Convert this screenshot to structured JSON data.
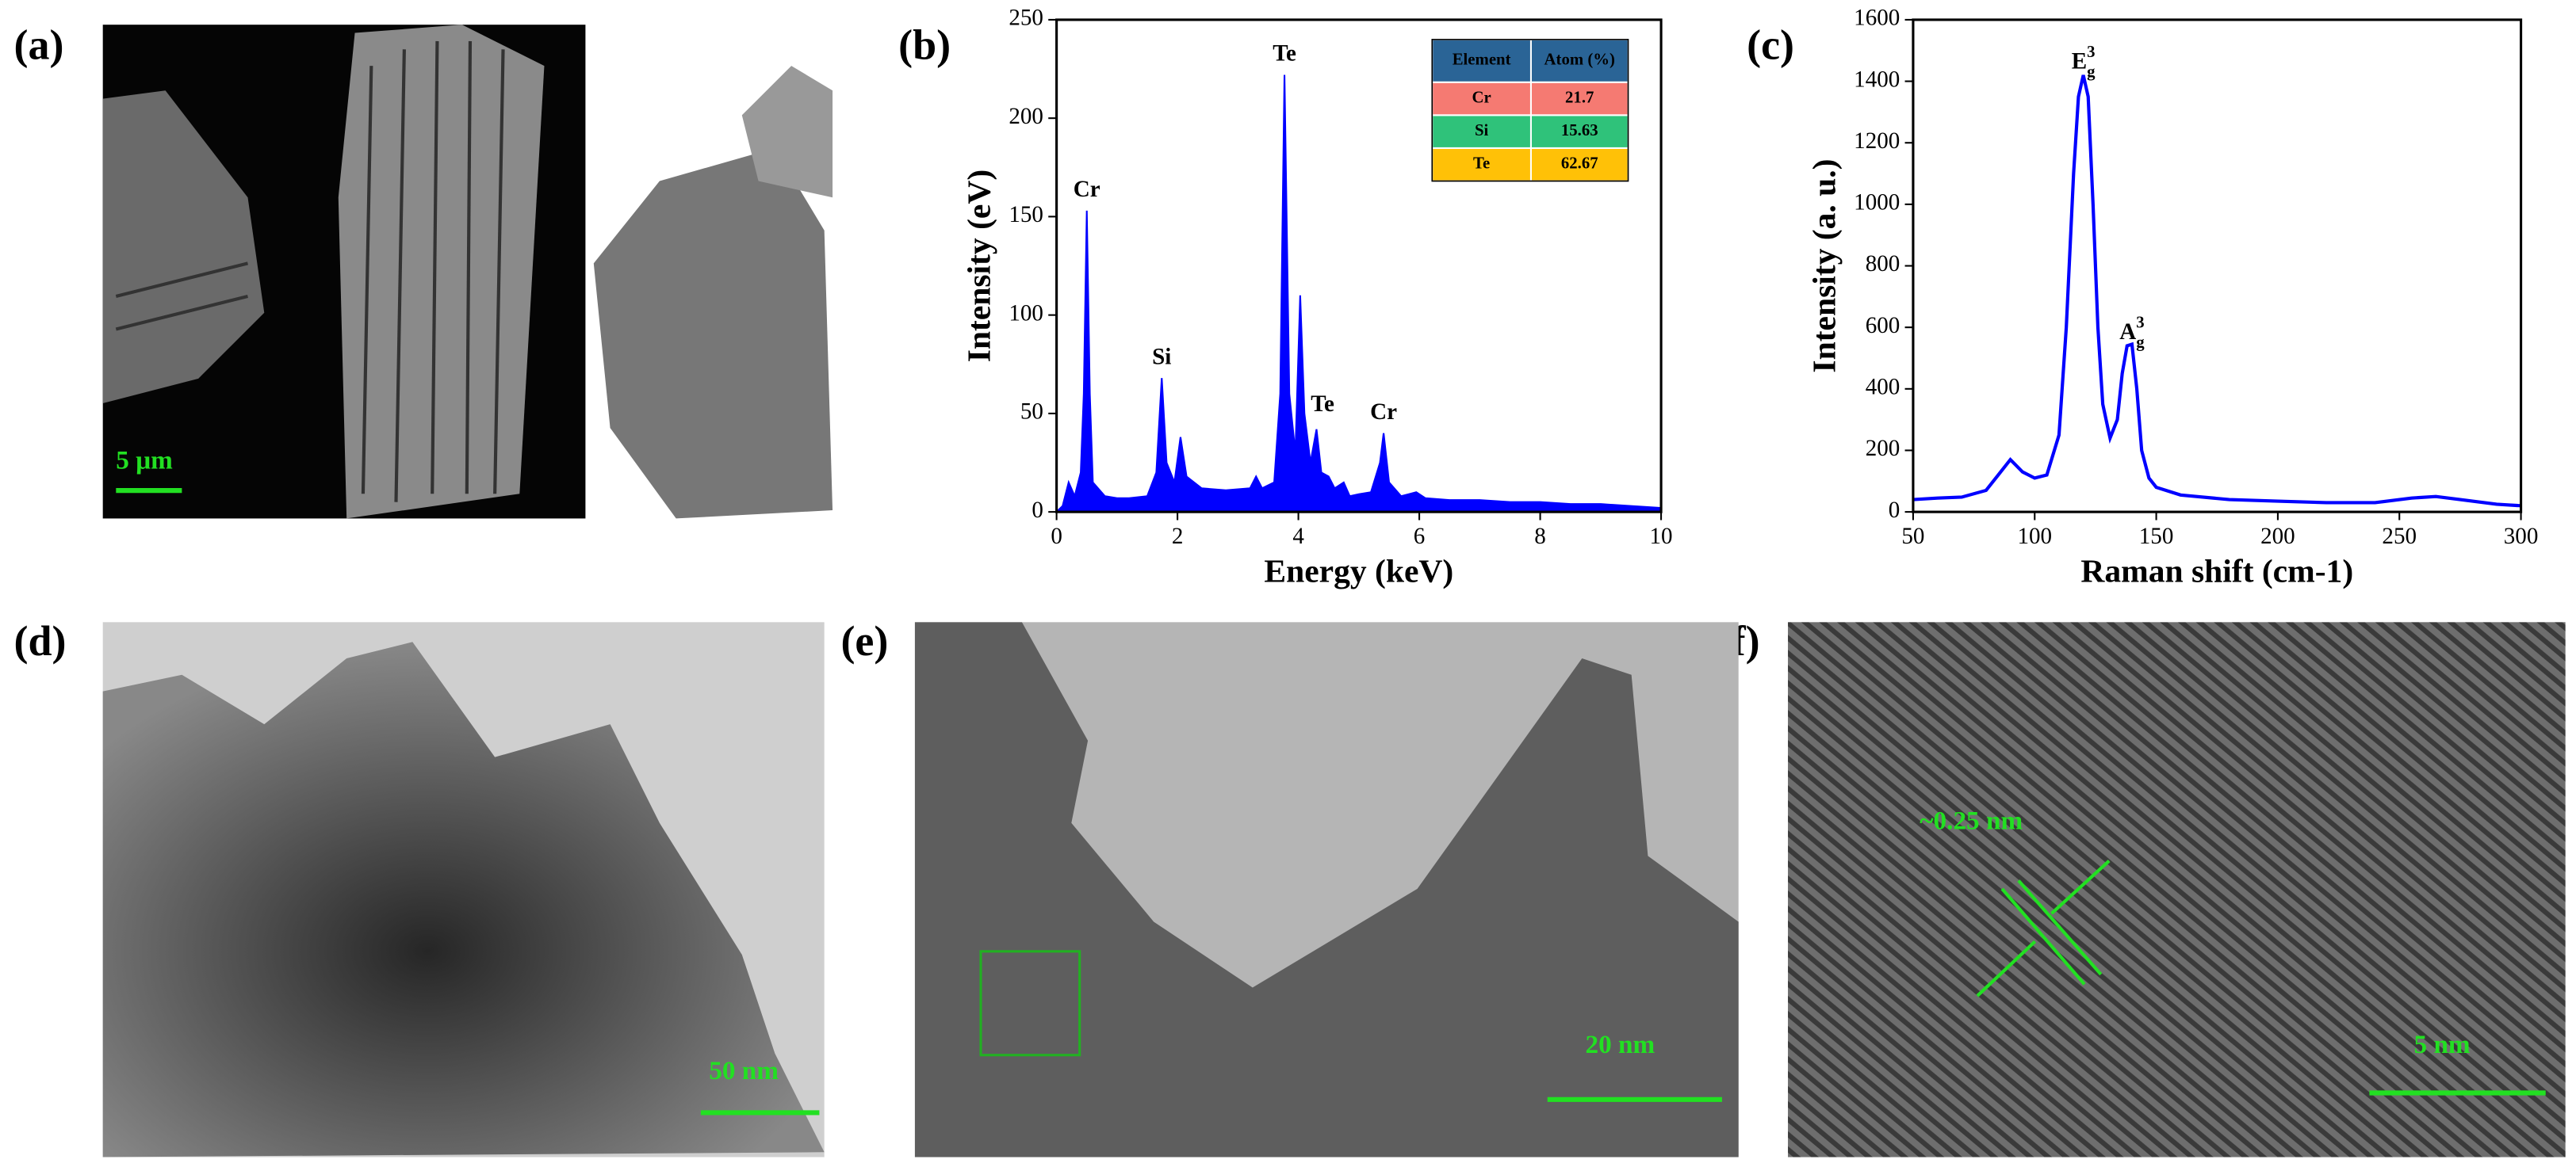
{
  "panel_labels": [
    "(a)",
    "(b)",
    "(c)",
    "(d)",
    "(e)",
    "(f)"
  ],
  "images": {
    "a": {
      "scale_bar": "5 μm"
    },
    "d": {
      "scale_bar": "50 nm"
    },
    "e": {
      "scale_bar": "20 nm"
    },
    "f": {
      "scale_bar": "5 nm",
      "annotation": "~0.25 nm"
    }
  },
  "chart_data": [
    {
      "type": "area",
      "x_label": "Energy (keV)",
      "y_label": "Intensity (eV)",
      "color": "#0000ff",
      "x": [
        0,
        0.1,
        0.2,
        0.3,
        0.4,
        0.45,
        0.5,
        0.55,
        0.6,
        0.8,
        1.0,
        1.2,
        1.5,
        1.65,
        1.74,
        1.82,
        1.95,
        2.05,
        2.15,
        2.4,
        2.8,
        3.2,
        3.3,
        3.4,
        3.6,
        3.7,
        3.77,
        3.85,
        3.95,
        4.03,
        4.1,
        4.2,
        4.3,
        4.38,
        4.5,
        4.6,
        4.75,
        4.85,
        5.0,
        5.2,
        5.35,
        5.41,
        5.5,
        5.7,
        5.95,
        6.1,
        6.5,
        7,
        7.5,
        8,
        8.5,
        9,
        9.5,
        10
      ],
      "values": [
        0,
        3,
        15,
        8,
        20,
        60,
        153,
        60,
        15,
        8,
        7,
        7,
        8,
        20,
        68,
        25,
        15,
        38,
        18,
        12,
        11,
        12,
        18,
        12,
        15,
        60,
        222,
        60,
        30,
        110,
        50,
        25,
        42,
        20,
        18,
        12,
        15,
        8,
        9,
        10,
        25,
        40,
        15,
        8,
        10,
        7,
        6,
        6,
        5,
        5,
        4,
        4,
        3,
        2
      ],
      "xlim": [
        0,
        10
      ],
      "xticks": [
        0,
        2,
        4,
        6,
        8,
        10
      ],
      "ylim": [
        0,
        250
      ],
      "yticks": [
        0,
        50,
        100,
        150,
        200,
        250
      ],
      "annotations": [
        {
          "text": "Cr",
          "x": 0.5,
          "y": 163
        },
        {
          "text": "Si",
          "x": 1.74,
          "y": 78
        },
        {
          "text": "Te",
          "x": 3.77,
          "y": 232
        },
        {
          "text": "Te",
          "x": 4.4,
          "y": 54
        },
        {
          "text": "Cr",
          "x": 5.41,
          "y": 50
        }
      ],
      "table": {
        "header": [
          "Element",
          "Atom (%)"
        ],
        "header_color": "#2a6496",
        "rows": [
          [
            "Cr",
            "21.7"
          ],
          [
            "Si",
            "15.63"
          ],
          [
            "Te",
            "62.67"
          ]
        ],
        "row_colors": [
          "#f57a72",
          "#2fc27a",
          "#ffc107"
        ]
      }
    },
    {
      "type": "line",
      "x_label": "Raman shift (cm-1)",
      "y_label": "Intensity (a. u.)",
      "color": "#0000ff",
      "x": [
        50,
        60,
        70,
        80,
        85,
        90,
        95,
        100,
        105,
        110,
        113,
        116,
        118,
        120,
        122,
        124,
        126,
        128,
        131,
        134,
        136,
        138,
        140,
        142,
        144,
        147,
        150,
        160,
        180,
        200,
        220,
        240,
        255,
        265,
        275,
        290,
        300
      ],
      "values": [
        40,
        45,
        48,
        70,
        120,
        170,
        130,
        110,
        120,
        250,
        600,
        1100,
        1350,
        1420,
        1350,
        1000,
        600,
        350,
        240,
        300,
        450,
        540,
        545,
        400,
        200,
        110,
        80,
        55,
        40,
        35,
        30,
        30,
        45,
        50,
        40,
        25,
        20
      ],
      "xlim": [
        50,
        300
      ],
      "xticks": [
        50,
        100,
        150,
        200,
        250,
        300
      ],
      "ylim": [
        0,
        1600
      ],
      "yticks": [
        0,
        200,
        400,
        600,
        800,
        1000,
        1200,
        1400,
        1600
      ],
      "annotations": [
        {
          "text": "E",
          "sub": "g",
          "sup": "3",
          "x": 120,
          "y": 1460
        },
        {
          "text": "A",
          "sub": "g",
          "sup": "3",
          "x": 140,
          "y": 580
        }
      ]
    }
  ]
}
